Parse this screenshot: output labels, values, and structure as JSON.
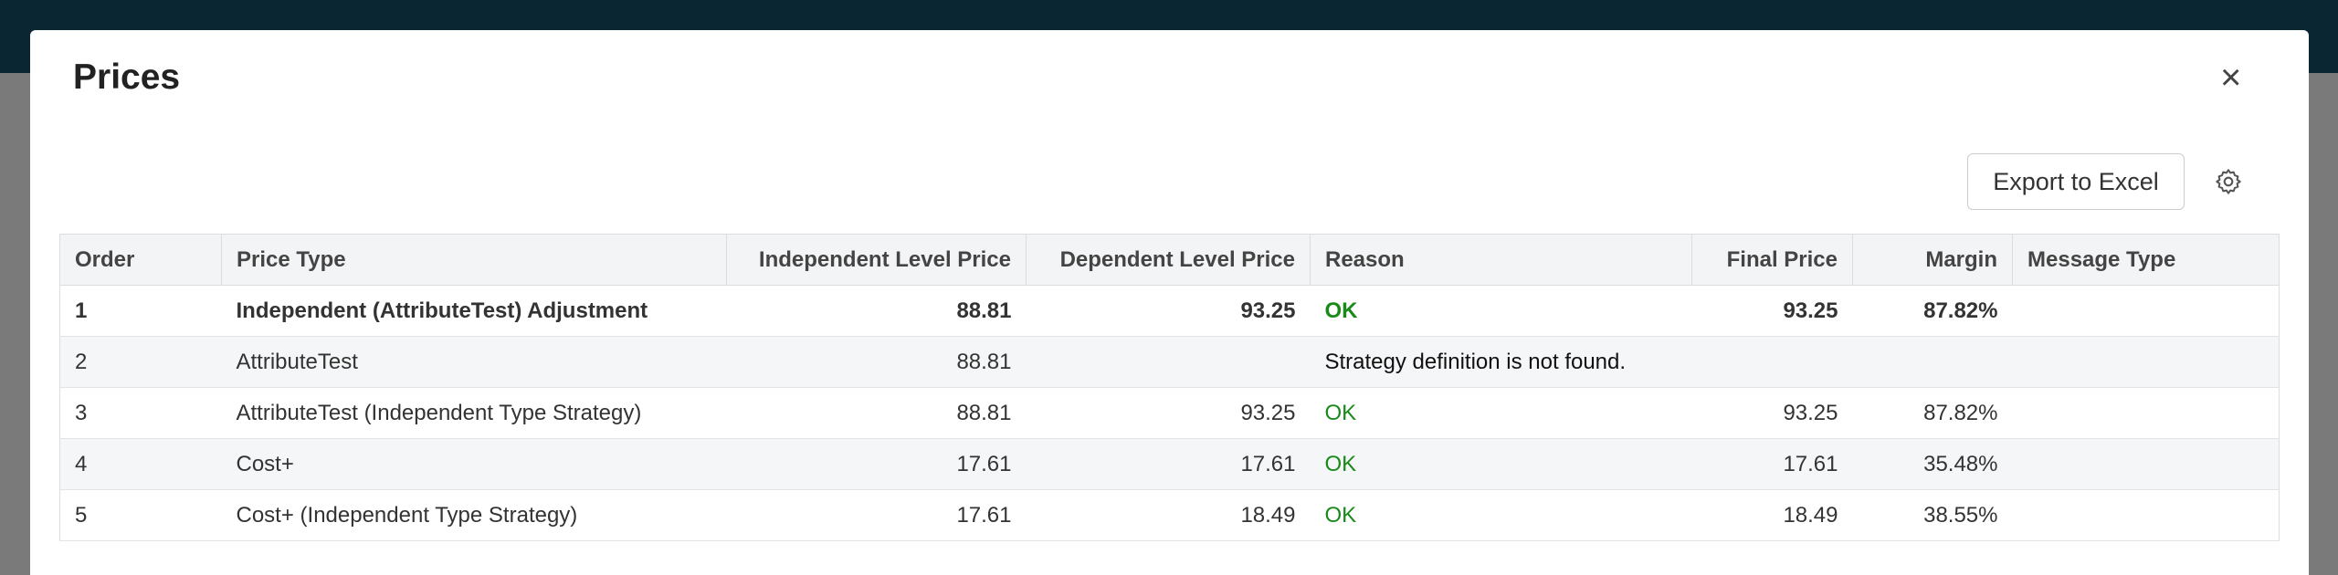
{
  "modal": {
    "title": "Prices",
    "close": "×",
    "export_button": "Export to Excel"
  },
  "table": {
    "columns": [
      "Order",
      "Price Type",
      "Independent Level Price",
      "Dependent Level Price",
      "Reason",
      "Final Price",
      "Margin",
      "Message Type"
    ],
    "rows": [
      [
        "1",
        "Independent (AttributeTest) Adjustment",
        "88.81",
        "93.25",
        "OK",
        "93.25",
        "87.82%",
        null
      ],
      [
        "2",
        "AttributeTest",
        "88.81",
        null,
        "Strategy definition is not found.",
        null,
        null,
        null
      ],
      [
        "3",
        "AttributeTest (Independent Type Strategy)",
        "88.81",
        "93.25",
        "OK",
        "93.25",
        "87.82%",
        null
      ],
      [
        "4",
        "Cost+",
        "17.61",
        "17.61",
        "OK",
        "17.61",
        "35.48%",
        null
      ],
      [
        "5",
        "Cost+ (Independent Type Strategy)",
        "17.61",
        "18.49",
        "OK",
        "18.49",
        "38.55%",
        null
      ]
    ]
  }
}
